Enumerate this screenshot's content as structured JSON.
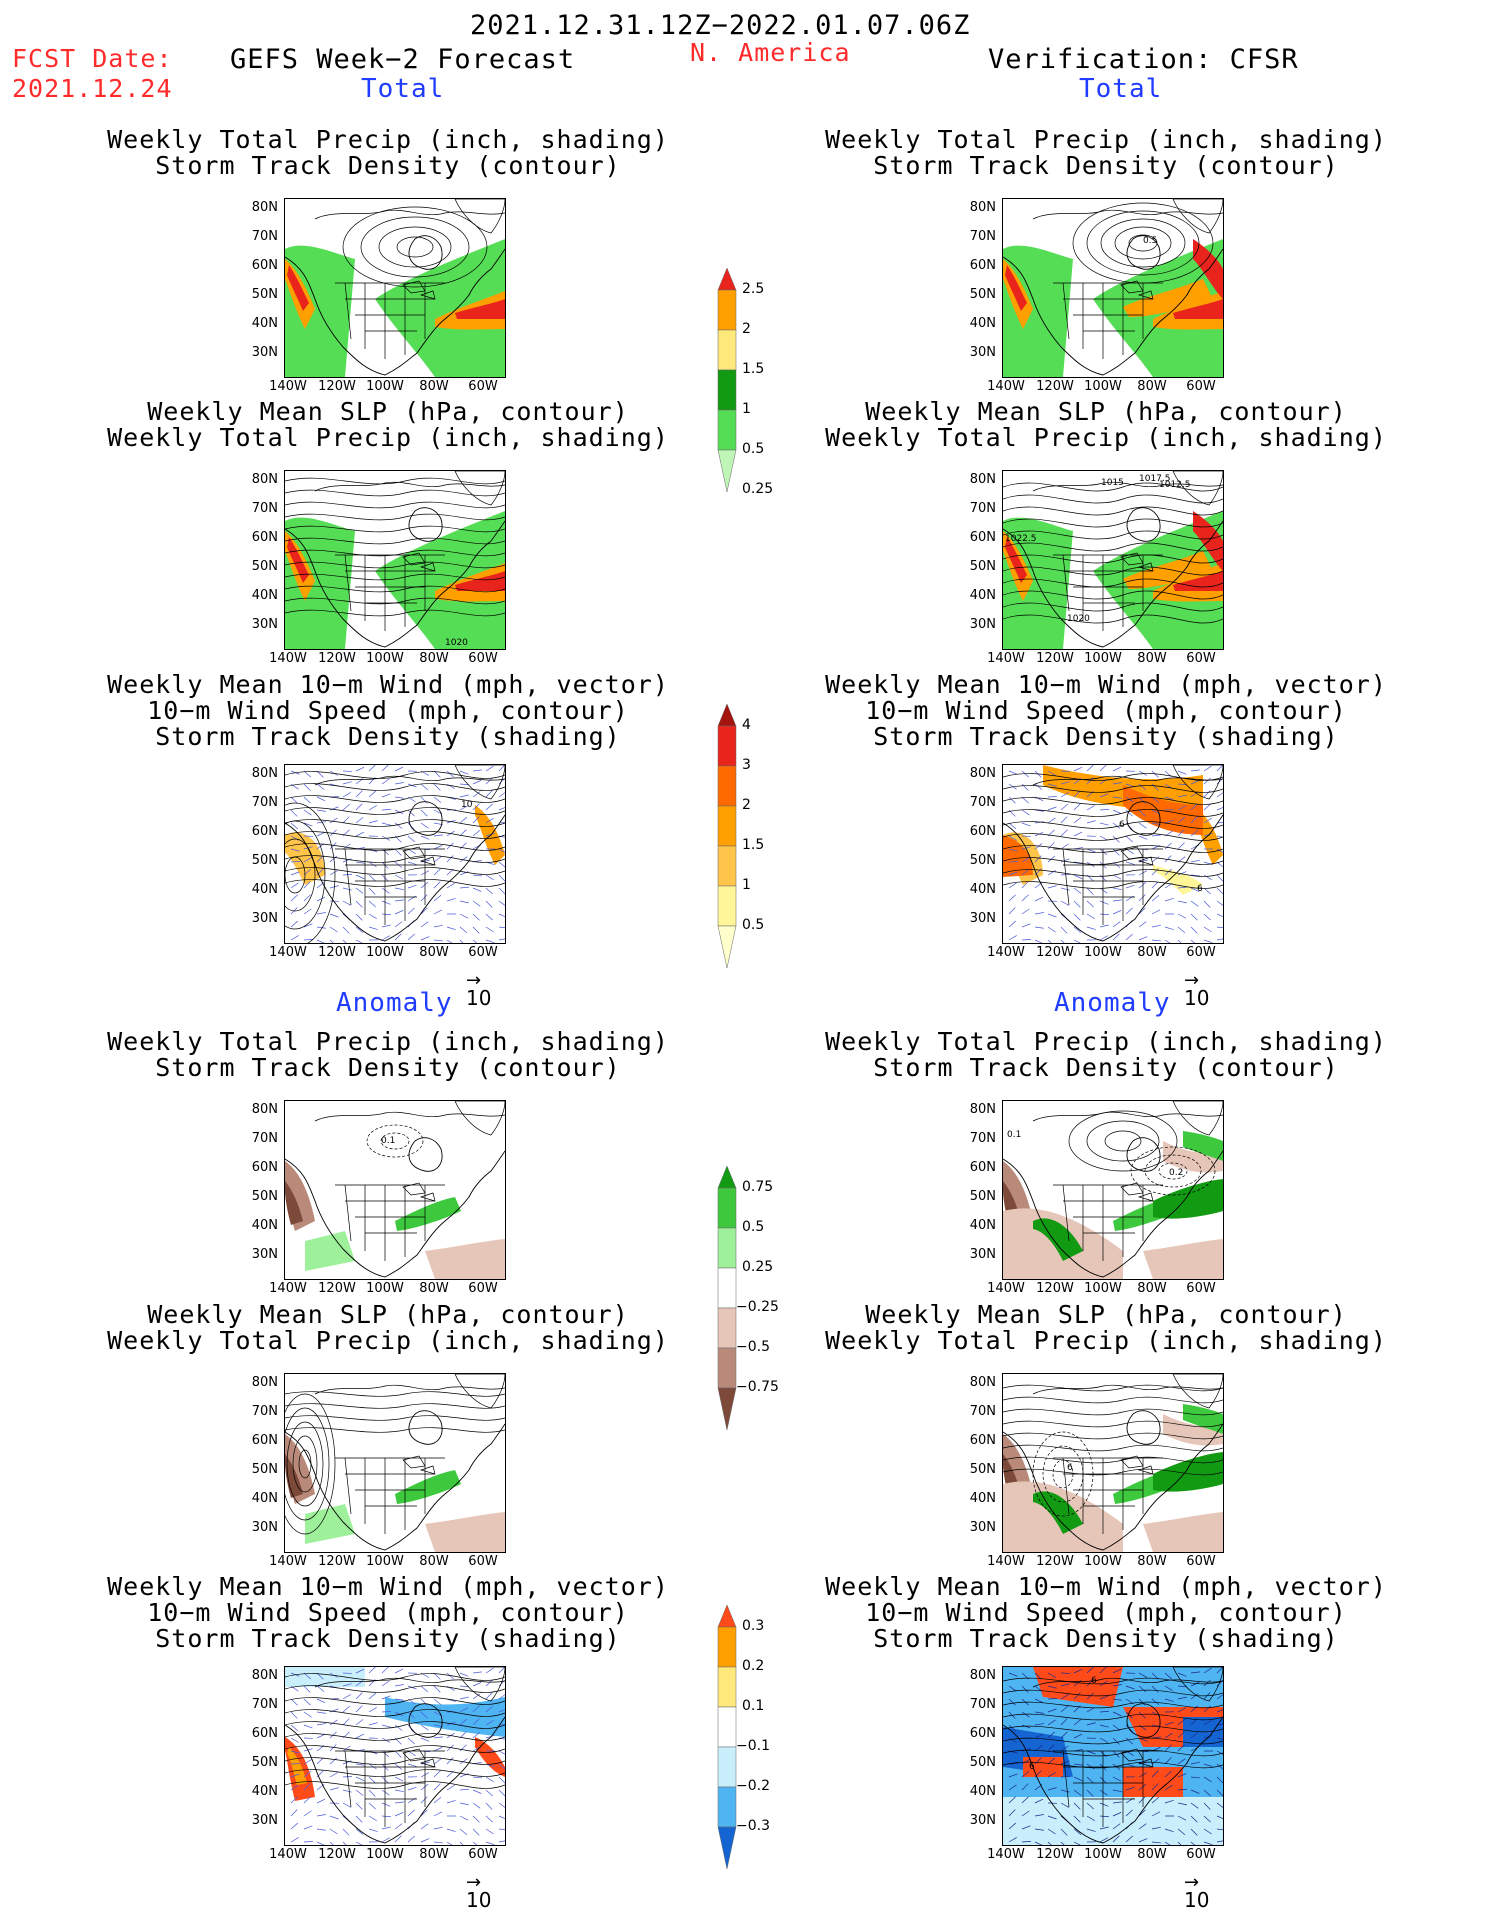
{
  "header": {
    "date_range": "2021.12.31.12Z−2022.01.07.06Z",
    "fcst_label": "FCST Date:",
    "fcst_date": "2021.12.24",
    "model": "GEFS Week−2 Forecast",
    "region": "N. America",
    "verification": "Verification: CFSR"
  },
  "sections": {
    "total": "Total",
    "anomaly": "Anomaly"
  },
  "axes": {
    "lat": [
      "80N",
      "70N",
      "60N",
      "50N",
      "40N",
      "30N"
    ],
    "lon": [
      "140W",
      "120W",
      "100W",
      "80W",
      "60W"
    ]
  },
  "titles": {
    "precip_storm": [
      "Weekly Total Precip (inch, shading)",
      "Storm Track Density (contour)"
    ],
    "slp_precip": [
      "Weekly Mean SLP (hPa, contour)",
      "Weekly Total Precip (inch, shading)"
    ],
    "wind_storm": [
      "Weekly Mean 10−m Wind (mph, vector)",
      "10−m Wind Speed (mph, contour)",
      "Storm Track Density (shading)"
    ]
  },
  "vector_ref": "10",
  "colorbars": {
    "precip_total": {
      "labels": [
        "2.5",
        "2",
        "1.5",
        "1",
        "0.5",
        "0.25"
      ],
      "colors": [
        "#e8241c",
        "#ff9f00",
        "#ffe97c",
        "#129b12",
        "#55dd55",
        "#bff5b6"
      ]
    },
    "storm_total": {
      "labels": [
        "4",
        "3",
        "2",
        "1.5",
        "1",
        "0.5"
      ],
      "colors": [
        "#a4130d",
        "#e8241c",
        "#ff6a00",
        "#ff9f00",
        "#ffc44a",
        "#fff69a",
        "#ffffcc"
      ]
    },
    "precip_anom": {
      "labels": [
        "0.75",
        "0.5",
        "0.25",
        "−0.25",
        "−0.5",
        "−0.75"
      ],
      "colors": [
        "#129b12",
        "#3ec83e",
        "#9ff09a",
        "#ffffff",
        "#e6c6b8",
        "#b98a7a",
        "#7d4a3a"
      ]
    },
    "storm_anom": {
      "labels": [
        "0.3",
        "0.2",
        "0.1",
        "−0.1",
        "−0.2",
        "−0.3"
      ],
      "colors": [
        "#ff4a1a",
        "#ff9f00",
        "#ffe97c",
        "#ffffff",
        "#c9eefc",
        "#4fb4f2",
        "#1464d2"
      ]
    }
  },
  "contour_labels": {
    "r1": [
      "0.5"
    ],
    "r2": [
      "1015",
      "1017.5",
      "1012.5",
      "1022.5",
      "1020"
    ],
    "l2": [
      "1020"
    ],
    "l3": [
      "10"
    ],
    "r3": [
      "6",
      "6"
    ],
    "l4": [
      "0.1"
    ],
    "r4": [
      "0.1",
      "0.2"
    ],
    "r5": [
      "6"
    ],
    "r6": [
      "6",
      "6"
    ]
  }
}
